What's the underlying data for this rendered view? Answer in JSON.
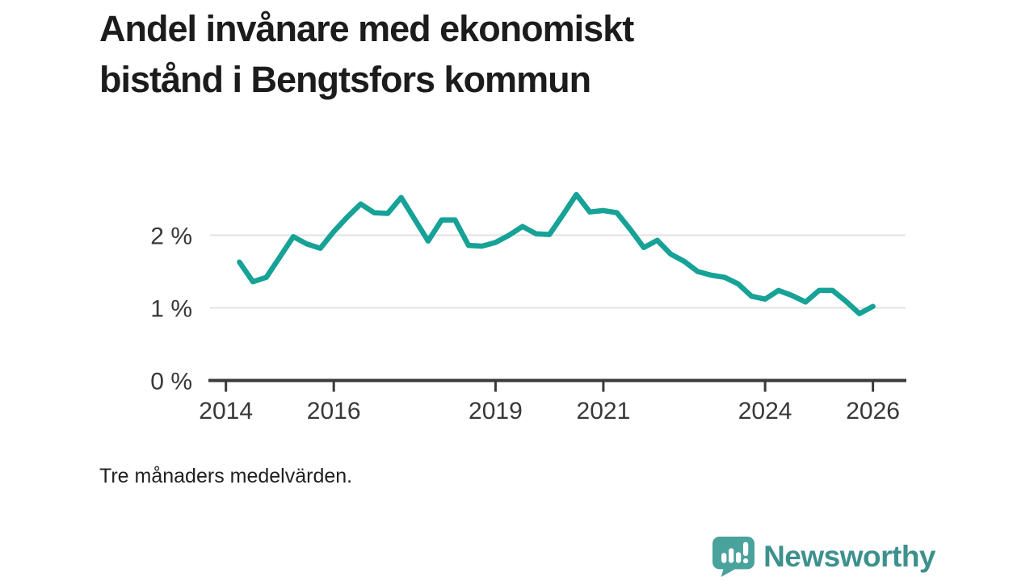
{
  "chart_data": {
    "type": "line",
    "title": "Andel invånare med ekonomiskt\nbistånd i Bengtsfors kommun",
    "footnote": "Tre månaders medelvärden.",
    "series_name": "Andel invånare med ekonomiskt bistånd, Bengtsfors kommun",
    "x": [
      2014.25,
      2014.5,
      2014.75,
      2015.0,
      2015.25,
      2015.5,
      2015.75,
      2016.0,
      2016.25,
      2016.5,
      2016.75,
      2017.0,
      2017.25,
      2017.5,
      2017.75,
      2018.0,
      2018.25,
      2018.5,
      2018.75,
      2019.0,
      2019.25,
      2019.5,
      2019.75,
      2020.0,
      2020.25,
      2020.5,
      2020.75,
      2021.0,
      2021.25,
      2021.5,
      2021.75,
      2022.0,
      2022.25,
      2022.5,
      2022.75,
      2023.0,
      2023.25,
      2023.5,
      2023.75,
      2024.0,
      2024.25,
      2024.5,
      2024.75,
      2025.0,
      2025.25,
      2025.5,
      2025.75,
      2026.0
    ],
    "values": [
      1.63,
      1.36,
      1.42,
      1.7,
      1.98,
      1.88,
      1.82,
      2.05,
      2.25,
      2.43,
      2.31,
      2.3,
      2.52,
      2.22,
      1.92,
      2.21,
      2.21,
      1.86,
      1.85,
      1.9,
      2.0,
      2.12,
      2.02,
      2.01,
      2.28,
      2.56,
      2.32,
      2.34,
      2.31,
      2.08,
      1.83,
      1.93,
      1.74,
      1.64,
      1.5,
      1.45,
      1.42,
      1.33,
      1.16,
      1.12,
      1.24,
      1.17,
      1.08,
      1.24,
      1.24,
      1.09,
      0.92,
      1.02
    ],
    "unit": "%",
    "x_ticks": [
      2014,
      2016,
      2019,
      2021,
      2024,
      2026
    ],
    "x_tick_labels": [
      "2014",
      "2016",
      "2019",
      "2021",
      "2024",
      "2026"
    ],
    "y_ticks": [
      0,
      1,
      2
    ],
    "y_tick_labels": [
      "0 %",
      "1 %",
      "2 %"
    ],
    "xlim": [
      2013.75,
      2026.65
    ],
    "ylim": [
      0,
      2.683
    ],
    "grid": "horizontal-only",
    "legend": "none"
  },
  "colors": {
    "line": "#16a296",
    "grid": "#e2e2e2",
    "axis": "#3a3a3a",
    "tick_text": "#383838",
    "title_text": "#1c1c1c",
    "logo_icon": "#4aa29c",
    "logo_word": "#3d918d"
  },
  "logo": {
    "brand": "Newsworthy",
    "icon": "bar-chart-speech-bubble-icon"
  }
}
